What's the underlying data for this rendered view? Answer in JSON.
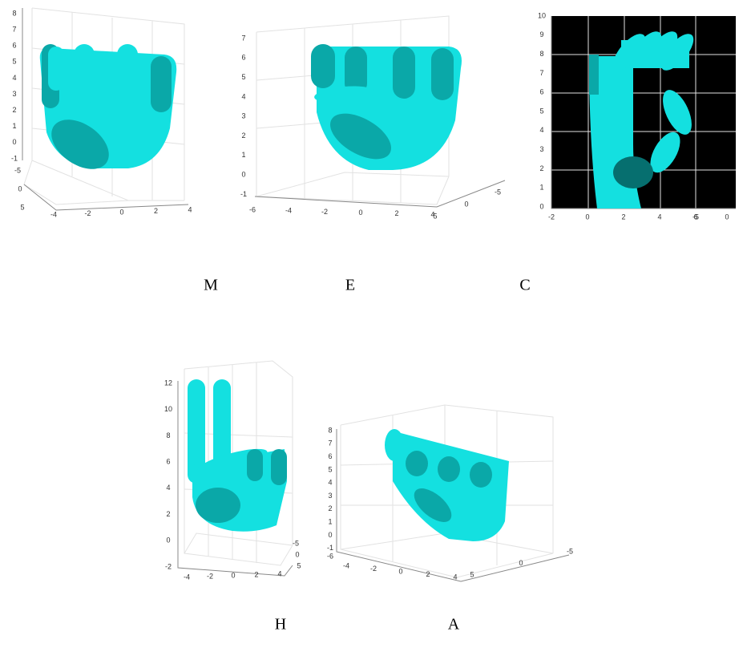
{
  "panels": [
    {
      "label": "M",
      "zticks": [
        8,
        7,
        6,
        5,
        4,
        3,
        2,
        1,
        0,
        -1
      ],
      "yticks": [
        -5,
        0,
        5
      ],
      "xticks": [
        -4,
        -2,
        0,
        2,
        4
      ]
    },
    {
      "label": "E",
      "zticks": [
        7,
        6,
        5,
        4,
        3,
        2,
        1,
        0,
        -1
      ],
      "xticks": [
        -6,
        -4,
        -2,
        0,
        2,
        4
      ],
      "yticks": [
        -5,
        0,
        5
      ]
    },
    {
      "label": "C",
      "zticks": [
        0,
        1,
        2,
        3,
        4,
        5,
        6,
        7,
        8,
        9,
        10
      ],
      "xticks": [
        -2,
        0,
        2,
        4,
        6
      ],
      "yticks": [
        -5,
        0
      ]
    },
    {
      "label": "H",
      "zticks": [
        12,
        10,
        8,
        6,
        4,
        2,
        0,
        -2
      ],
      "xticks": [
        -4,
        -2,
        0,
        2,
        4
      ],
      "yticks": [
        -5,
        0,
        5
      ]
    },
    {
      "label": "A",
      "zticks": [
        8,
        7,
        6,
        5,
        4,
        3,
        2,
        1,
        0,
        -1
      ],
      "xticks": [
        -4,
        -2,
        0,
        2,
        4
      ],
      "yticks": [
        5,
        0,
        -5
      ],
      "extra_ticks": [
        -6
      ]
    }
  ]
}
